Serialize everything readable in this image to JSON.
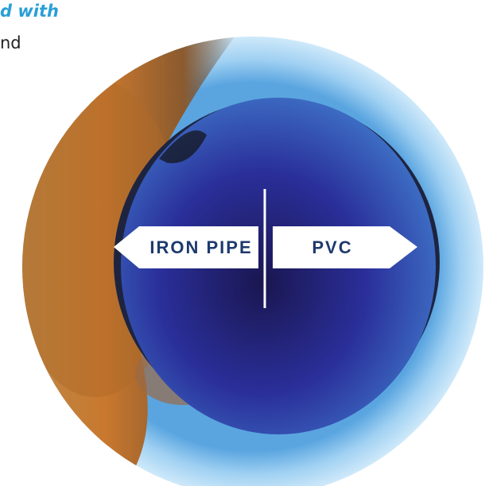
{
  "texts": {
    "heading_fragment": "d with",
    "body_fragment": "nd"
  },
  "labels": {
    "left": "IRON PIPE",
    "right": "PVC"
  }
}
